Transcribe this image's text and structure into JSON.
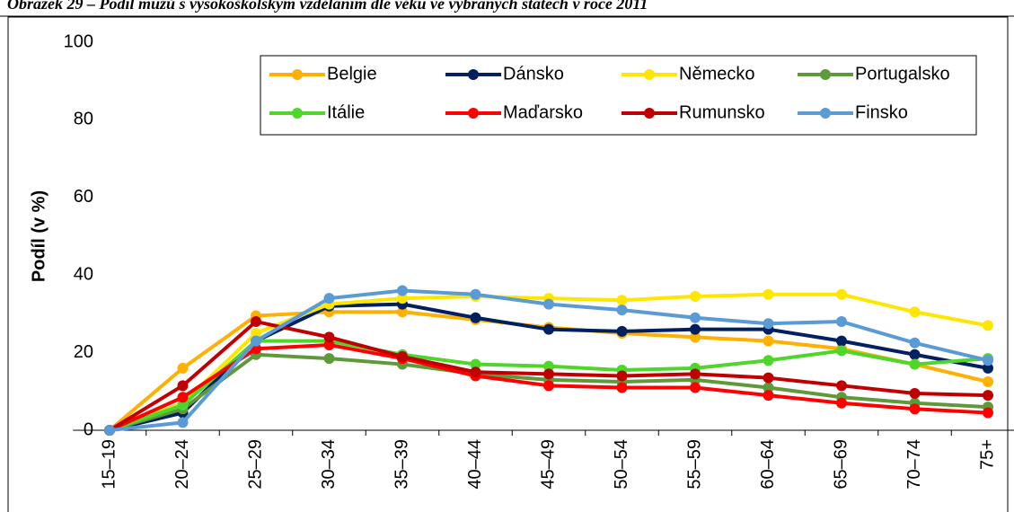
{
  "chart_data": {
    "type": "line",
    "title": "Obrázek 29 – Podíl mužů s vysokoškolským vzděláním dle věku ve vybraných státech v roce 2011",
    "y_label": "Podíl (v %)",
    "categories": [
      "15–19",
      "20–24",
      "25–29",
      "30–34",
      "35–39",
      "40–44",
      "45–49",
      "50–54",
      "55–59",
      "60–64",
      "65–69",
      "70–74",
      "75+"
    ],
    "series": [
      {
        "name": "Belgie",
        "color": "#FFB000",
        "values": [
          0,
          16,
          29.5,
          30.5,
          30.5,
          28.5,
          26.5,
          25,
          24,
          23,
          21,
          17,
          12.5
        ]
      },
      {
        "name": "Dánsko",
        "color": "#002060",
        "values": [
          0,
          4.5,
          23,
          32,
          32.5,
          29,
          26,
          25.5,
          26,
          26,
          23,
          19.5,
          16
        ]
      },
      {
        "name": "Německo",
        "color": "#FFE600",
        "values": [
          0,
          7,
          25,
          32.5,
          34,
          34.5,
          34,
          33.5,
          34.5,
          35,
          35,
          30.5,
          27
        ]
      },
      {
        "name": "Portugalsko",
        "color": "#5E9A3A",
        "values": [
          0,
          5.5,
          19.5,
          18.5,
          17,
          14.5,
          13,
          12.5,
          13,
          11,
          8.5,
          7,
          6
        ]
      },
      {
        "name": "Itálie",
        "color": "#4FD62A",
        "values": [
          0,
          6.5,
          23,
          23,
          19.5,
          17,
          16.5,
          15.5,
          16,
          18,
          20.5,
          17,
          18.5
        ]
      },
      {
        "name": "Maďarsko",
        "color": "#FF0000",
        "values": [
          0,
          8.5,
          21,
          22,
          18.5,
          14,
          11.5,
          11,
          11,
          9,
          7,
          5.5,
          4.5
        ]
      },
      {
        "name": "Rumunsko",
        "color": "#C00000",
        "values": [
          0,
          11.5,
          28,
          24,
          19,
          15,
          14.5,
          14,
          14.5,
          13.5,
          11.5,
          9.5,
          9
        ]
      },
      {
        "name": "Finsko",
        "color": "#5B9BD5",
        "values": [
          0,
          2,
          23,
          34,
          36,
          35,
          32.5,
          31,
          29,
          27.5,
          28,
          22.5,
          18
        ]
      }
    ],
    "ylim": [
      0,
      100
    ],
    "yticks": [
      0,
      20,
      40,
      60,
      80,
      100
    ],
    "grid": false,
    "legend": "top"
  }
}
